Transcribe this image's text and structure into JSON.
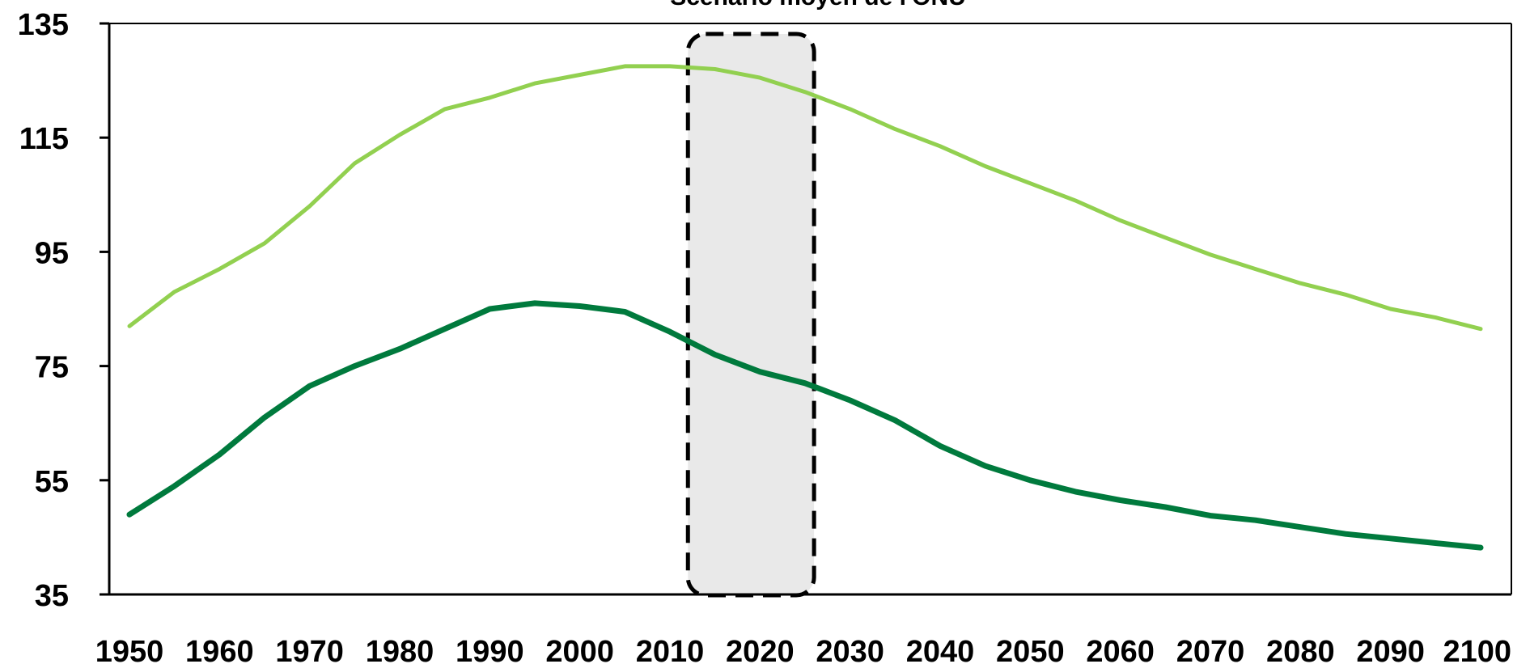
{
  "chart_data": {
    "type": "line",
    "title": "Scénario moyen de l'ONU",
    "xlabel": "",
    "ylabel": "",
    "xlim": [
      1950,
      2100
    ],
    "ylim": [
      35,
      135
    ],
    "y_ticks": [
      35,
      55,
      75,
      95,
      115,
      135
    ],
    "x_ticks": [
      1950,
      1960,
      1970,
      1980,
      1990,
      2000,
      2010,
      2020,
      2030,
      2040,
      2050,
      2060,
      2070,
      2080,
      2090,
      2100
    ],
    "grid": false,
    "legend": "none",
    "highlight_range": [
      2012,
      2026
    ],
    "series": [
      {
        "color": "#92d050",
        "x": [
          1950,
          1955,
          1960,
          1965,
          1970,
          1975,
          1980,
          1985,
          1990,
          1995,
          2000,
          2005,
          2010,
          2015,
          2020,
          2025,
          2030,
          2035,
          2040,
          2045,
          2050,
          2055,
          2060,
          2065,
          2070,
          2075,
          2080,
          2085,
          2090,
          2095,
          2100
        ],
        "values": [
          82,
          88,
          92,
          96.5,
          103,
          110.5,
          115.5,
          120,
          122,
          124.5,
          126,
          127.5,
          127.5,
          127,
          125.5,
          123,
          120,
          116.5,
          113.5,
          110,
          107,
          104,
          100.5,
          97.5,
          94.5,
          92,
          89.5,
          87.5,
          85,
          83.5,
          81.5
        ]
      },
      {
        "color": "#007a3d",
        "x": [
          1950,
          1955,
          1960,
          1965,
          1970,
          1975,
          1980,
          1985,
          1990,
          1995,
          2000,
          2005,
          2010,
          2015,
          2020,
          2025,
          2030,
          2035,
          2040,
          2045,
          2050,
          2055,
          2060,
          2065,
          2070,
          2075,
          2080,
          2085,
          2090,
          2095,
          2100
        ],
        "values": [
          49,
          54,
          59.5,
          66,
          71.5,
          75,
          78,
          81.5,
          85,
          86,
          85.5,
          84.5,
          81,
          77,
          74,
          72,
          69,
          65.5,
          61,
          57.5,
          55,
          53,
          51.5,
          50.3,
          48.8,
          48,
          46.8,
          45.6,
          44.8,
          44,
          43.2
        ]
      }
    ]
  }
}
